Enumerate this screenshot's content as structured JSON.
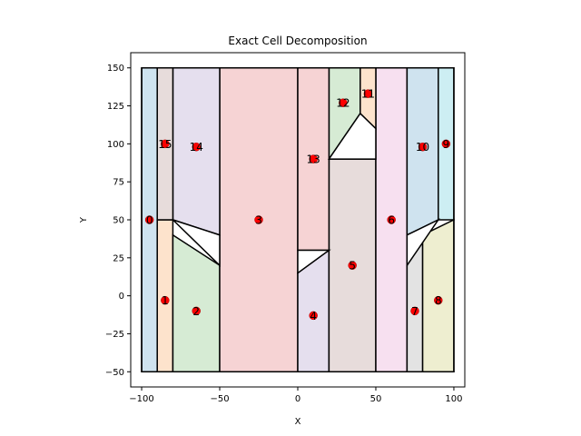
{
  "chart_data": {
    "type": "scatter",
    "title": "Exact Cell Decomposition",
    "xlabel": "X",
    "ylabel": "Y",
    "xlim": [
      -107,
      107
    ],
    "ylim": [
      -60,
      160
    ],
    "xticks": [
      -100,
      -50,
      0,
      50,
      100
    ],
    "yticks": [
      -50,
      -25,
      0,
      25,
      50,
      75,
      100,
      125,
      150
    ],
    "grid": false,
    "workspace": [
      [
        -100,
        -50
      ],
      [
        100,
        -50
      ],
      [
        100,
        150
      ],
      [
        -100,
        150
      ]
    ],
    "obstacles": [
      [
        [
          -80,
          50
        ],
        [
          -50,
          40
        ],
        [
          -50,
          20
        ]
      ],
      [
        [
          0,
          15
        ],
        [
          20,
          30
        ],
        [
          0,
          30
        ]
      ],
      [
        [
          20,
          90
        ],
        [
          40,
          120
        ],
        [
          50,
          110
        ],
        [
          50,
          90
        ]
      ],
      [
        [
          70,
          20
        ],
        [
          90,
          50
        ],
        [
          70,
          40
        ]
      ]
    ],
    "cells": [
      {
        "id": "0",
        "color": "#cfe3ef",
        "polygon": [
          [
            -100,
            -50
          ],
          [
            -90,
            -50
          ],
          [
            -90,
            150
          ],
          [
            -100,
            150
          ]
        ],
        "centroid": [
          -95,
          50
        ]
      },
      {
        "id": "1",
        "color": "#fde3cc",
        "polygon": [
          [
            -90,
            -50
          ],
          [
            -80,
            -50
          ],
          [
            -80,
            50
          ],
          [
            -90,
            50
          ]
        ],
        "centroid": [
          -85,
          -3
        ]
      },
      {
        "id": "2",
        "color": "#d6ebd4",
        "polygon": [
          [
            -80,
            -50
          ],
          [
            -50,
            -50
          ],
          [
            -50,
            20
          ],
          [
            -80,
            40
          ]
        ],
        "centroid": [
          -65,
          -10
        ]
      },
      {
        "id": "3",
        "color": "#f6d3d4",
        "polygon": [
          [
            -50,
            -50
          ],
          [
            0,
            -50
          ],
          [
            0,
            150
          ],
          [
            -50,
            150
          ]
        ],
        "centroid": [
          -25,
          50
        ]
      },
      {
        "id": "4",
        "color": "#e5dfee",
        "polygon": [
          [
            0,
            -50
          ],
          [
            20,
            -50
          ],
          [
            20,
            30
          ],
          [
            0,
            15
          ]
        ],
        "centroid": [
          10,
          -13
        ]
      },
      {
        "id": "5",
        "color": "#e7dcdb",
        "polygon": [
          [
            20,
            -50
          ],
          [
            50,
            -50
          ],
          [
            50,
            90
          ],
          [
            20,
            90
          ]
        ],
        "centroid": [
          35,
          20
        ]
      },
      {
        "id": "6",
        "color": "#f7e0f0",
        "polygon": [
          [
            50,
            -50
          ],
          [
            70,
            -50
          ],
          [
            70,
            150
          ],
          [
            50,
            150
          ]
        ],
        "centroid": [
          60,
          50
        ]
      },
      {
        "id": "7",
        "color": "#e3e3e3",
        "polygon": [
          [
            70,
            -50
          ],
          [
            80,
            -50
          ],
          [
            80,
            40
          ],
          [
            70,
            20
          ]
        ],
        "centroid": [
          75,
          -10
        ]
      },
      {
        "id": "8",
        "color": "#eeeed0",
        "polygon": [
          [
            80,
            -50
          ],
          [
            100,
            -50
          ],
          [
            100,
            50
          ],
          [
            80,
            40
          ]
        ],
        "centroid": [
          90,
          -3
        ]
      },
      {
        "id": "9",
        "color": "#cdeef3",
        "polygon": [
          [
            90,
            50
          ],
          [
            100,
            50
          ],
          [
            100,
            150
          ],
          [
            90,
            150
          ]
        ],
        "centroid": [
          95,
          100
        ]
      },
      {
        "id": "10",
        "color": "#cfe3ef",
        "polygon": [
          [
            70,
            40
          ],
          [
            90,
            50
          ],
          [
            90,
            150
          ],
          [
            70,
            150
          ]
        ],
        "centroid": [
          80,
          98
        ]
      },
      {
        "id": "11",
        "color": "#fde3cc",
        "polygon": [
          [
            40,
            120
          ],
          [
            50,
            110
          ],
          [
            50,
            150
          ],
          [
            40,
            150
          ]
        ],
        "centroid": [
          45,
          133
        ]
      },
      {
        "id": "12",
        "color": "#d6ebd4",
        "polygon": [
          [
            20,
            90
          ],
          [
            40,
            120
          ],
          [
            40,
            150
          ],
          [
            20,
            150
          ]
        ],
        "centroid": [
          29,
          127
        ]
      },
      {
        "id": "13",
        "color": "#f6d3d4",
        "polygon": [
          [
            0,
            30
          ],
          [
            20,
            30
          ],
          [
            20,
            150
          ],
          [
            0,
            150
          ]
        ],
        "centroid": [
          10,
          90
        ]
      },
      {
        "id": "14",
        "color": "#e5dfee",
        "polygon": [
          [
            -80,
            50
          ],
          [
            -50,
            40
          ],
          [
            -50,
            150
          ],
          [
            -80,
            150
          ]
        ],
        "centroid": [
          -65,
          98
        ]
      },
      {
        "id": "15",
        "color": "#e7dcdb",
        "polygon": [
          [
            -90,
            50
          ],
          [
            -80,
            50
          ],
          [
            -80,
            150
          ],
          [
            -90,
            150
          ]
        ],
        "centroid": [
          -85,
          100
        ]
      }
    ],
    "centroid_color": "#ff0000",
    "edge_color": "#000000"
  }
}
